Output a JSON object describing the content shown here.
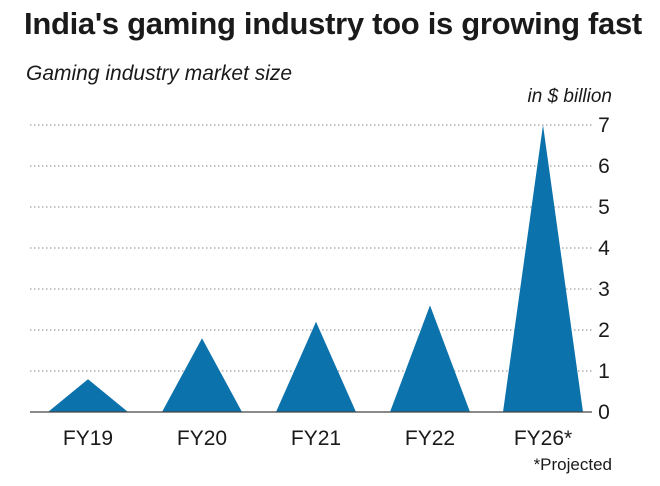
{
  "chart_data": {
    "type": "bar",
    "title": "India's gaming industry too is growing fast",
    "subtitle": "Gaming industry market size",
    "ylabel": "in $ billion",
    "categories": [
      "FY19",
      "FY20",
      "FY21",
      "FY22",
      "FY26*"
    ],
    "values": [
      0.8,
      1.8,
      2.2,
      2.6,
      7.0
    ],
    "ylim": [
      0,
      7
    ],
    "yticks": [
      0,
      1,
      2,
      3,
      4,
      5,
      6,
      7
    ],
    "grid": true,
    "color": "#0c72ac",
    "footnote": "*Projected"
  }
}
